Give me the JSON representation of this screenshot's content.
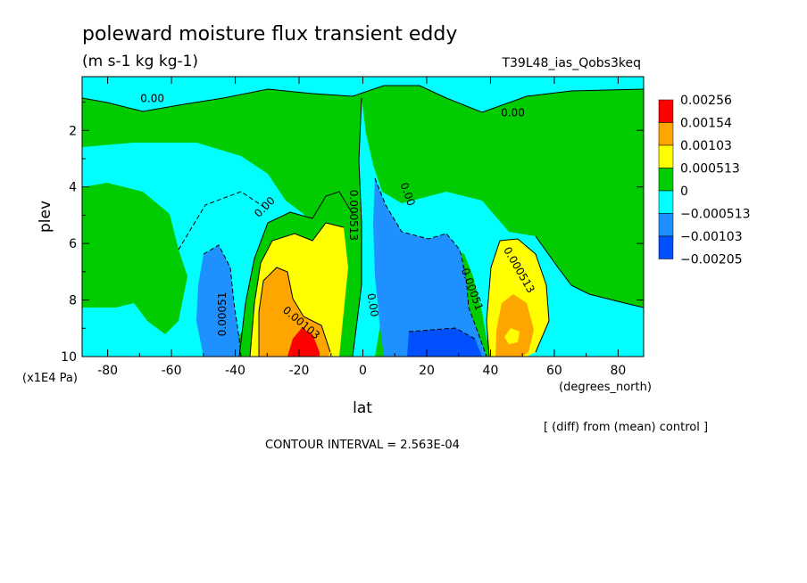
{
  "title": "poleward moisture flux transient eddy",
  "units": "(m s-1 kg kg-1)",
  "run_name": "T39L48_ias_Qobs3keq",
  "footnote": "[ (diff) from (mean) control ]",
  "contour_interval": "CONTOUR INTERVAL = 2.563E-04",
  "chart_data": {
    "type": "heatmap",
    "xlabel": "lat",
    "x_unit": "(degrees_north)",
    "ylabel": "plev",
    "y_unit": "(x1E4 Pa)",
    "x_range": [
      -88,
      88
    ],
    "y_range": [
      10,
      0.1
    ],
    "x_ticks": [
      -80,
      -60,
      -40,
      -20,
      0,
      20,
      40,
      60,
      80
    ],
    "x_tick_labels": [
      "-80",
      "-60",
      "-40",
      "-20",
      "0",
      "20",
      "40",
      "60",
      "80"
    ],
    "y_ticks": [
      2,
      4,
      6,
      8,
      10
    ],
    "y_tick_labels": [
      "2",
      "4",
      "6",
      "8",
      "10"
    ],
    "levels": [
      {
        "label": "0.00256",
        "color": "#ff0000"
      },
      {
        "label": "0.00154",
        "color": "#ffa500"
      },
      {
        "label": "0.00103",
        "color": "#ffff00"
      },
      {
        "label": "0.000513",
        "color": "#00cc00"
      },
      {
        "label": "0",
        "color": "#00ffff"
      },
      {
        "label": "−0.000513",
        "color": "#1e90ff"
      },
      {
        "label": "−0.00103",
        "color": "#0050ff"
      },
      {
        "label": "−0.00205",
        "color": "#ffffff"
      }
    ],
    "contour_labels": [
      {
        "text": "0.00",
        "lat": -66,
        "plev": 1.0
      },
      {
        "text": "0.00",
        "lat": 47,
        "plev": 1.5
      },
      {
        "text": "0.00",
        "lat": -30,
        "plev": 4.8
      },
      {
        "text": "0.00",
        "lat": 13,
        "plev": 4.3
      },
      {
        "text": "0.000513",
        "lat": -4,
        "plev": 5.0
      },
      {
        "text": "0.000513",
        "lat": 48,
        "plev": 7.0
      },
      {
        "text": "-0.00051",
        "lat": 33,
        "plev": 7.6
      },
      {
        "text": "0.00",
        "lat": 2,
        "plev": 8.2
      },
      {
        "text": "0.00051",
        "lat": -43,
        "plev": 8.5
      },
      {
        "text": "0.00103",
        "lat": -20,
        "plev": 8.9
      }
    ]
  }
}
